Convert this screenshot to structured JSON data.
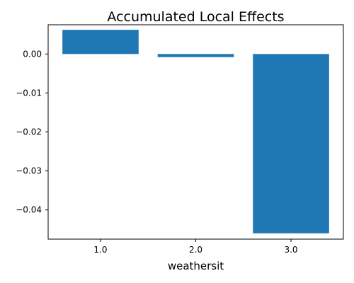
{
  "chart_data": {
    "type": "bar",
    "title": "Accumulated Local Effects",
    "xlabel": "weathersit",
    "ylabel": "",
    "categories": [
      "1.0",
      "2.0",
      "3.0"
    ],
    "values": [
      0.0062,
      -0.0008,
      -0.046
    ],
    "ylim": [
      -0.0475,
      0.0075
    ],
    "yticks": [
      0.0,
      -0.01,
      -0.02,
      -0.03,
      -0.04
    ],
    "ytick_labels": [
      "0.00",
      "−0.01",
      "−0.02",
      "−0.03",
      "−0.04"
    ],
    "bar_color": "#1f77b4",
    "grid": false,
    "legend": "none"
  }
}
